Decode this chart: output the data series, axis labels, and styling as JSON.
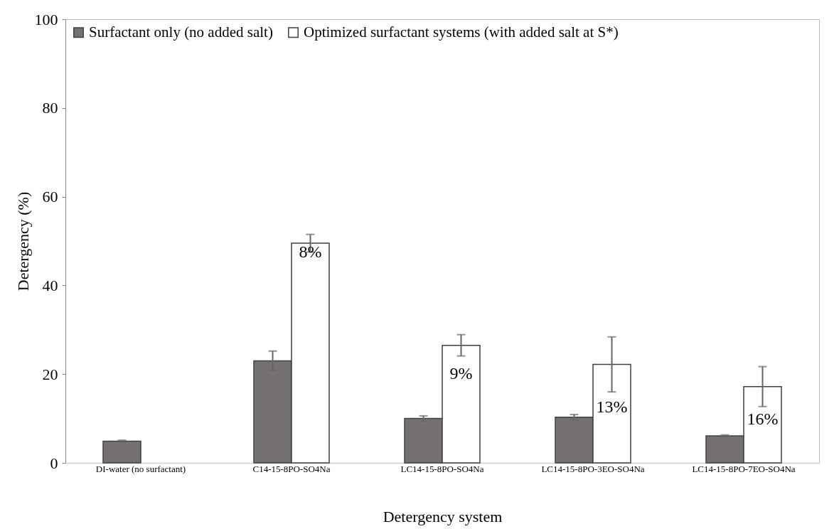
{
  "chart_data": {
    "type": "bar",
    "xlabel": "Detergency system",
    "ylabel": "Detergency (%)",
    "categories": [
      "DI-water (no surfactant)",
      "C14-15-8PO-SO4Na",
      "LC14-15-8PO-SO4Na",
      "LC14-15-8PO-3EO-SO4Na",
      "LC14-15-8PO-7EO-SO4Na"
    ],
    "series": [
      {
        "name": "Surfactant only (no added salt)",
        "color": "#767171",
        "values": [
          4.9,
          23.0,
          10.0,
          10.3,
          6.1
        ],
        "errors": [
          0.2,
          2.2,
          0.6,
          0.6,
          0.2
        ]
      },
      {
        "name": "Optimized surfactant systems (with added salt at S*)",
        "color": "#ffffff",
        "values": [
          null,
          49.5,
          26.5,
          22.2,
          17.2
        ],
        "errors": [
          null,
          2.0,
          2.4,
          6.2,
          4.5
        ]
      }
    ],
    "ylim": [
      0,
      100
    ],
    "yticks": [
      0,
      20,
      40,
      60,
      80,
      100
    ],
    "grid": false,
    "legend": "top",
    "annotations": [
      {
        "text": "8%",
        "x": "C14-15-8PO-SO4Na",
        "y": 47.4
      },
      {
        "text": "9%",
        "x": "LC14-15-8PO-SO4Na",
        "y": 20
      },
      {
        "text": "13%",
        "x": "LC14-15-8PO-3EO-SO4Na",
        "y": 12.5
      },
      {
        "text": "16%",
        "x": "LC14-15-8PO-7EO-SO4Na",
        "y": 9.8
      }
    ]
  }
}
